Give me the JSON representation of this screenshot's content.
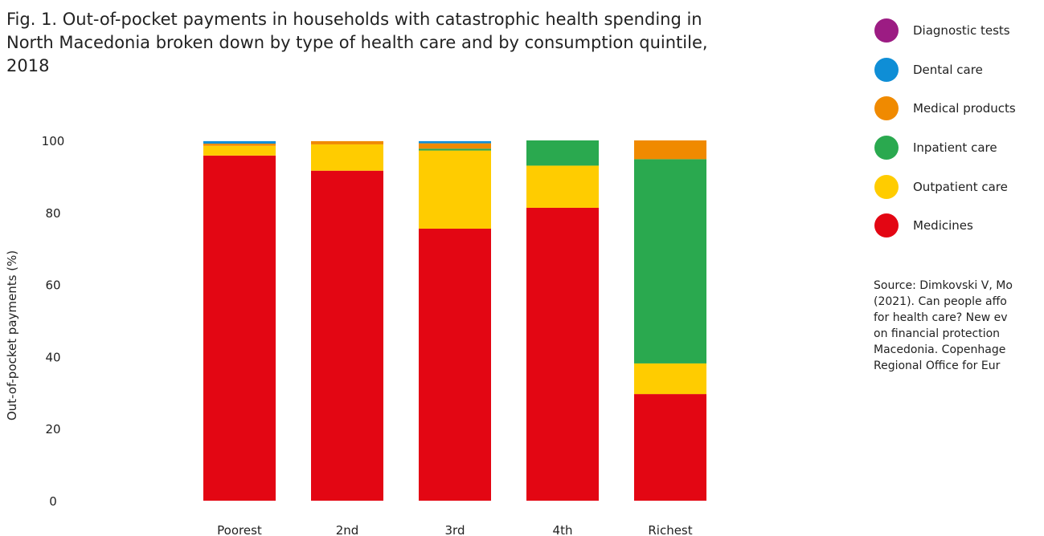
{
  "chart_data": {
    "type": "bar",
    "stacked": true,
    "title": "Fig. 1. Out-of-pocket payments in households with catastrophic health spending in North Macedonia broken down by type of health care and by consumption quintile, 2018",
    "xlabel": "",
    "ylabel": "Out-of-pocket payments (%)",
    "ylim": [
      0,
      100
    ],
    "yticks": [
      0,
      20,
      40,
      60,
      80,
      100
    ],
    "grid": false,
    "legend_position": "right",
    "categories": [
      "Poorest",
      "2nd",
      "3rd",
      "4th",
      "Richest"
    ],
    "series": [
      {
        "name": "Medicines",
        "color": "#e30613",
        "values": [
          95.8,
          91.6,
          75.5,
          81.3,
          29.6
        ]
      },
      {
        "name": "Outpatient care",
        "color": "#ffcc00",
        "values": [
          2.7,
          7.3,
          21.7,
          11.7,
          8.5
        ]
      },
      {
        "name": "Inpatient care",
        "color": "#2aa94f",
        "values": [
          0.0,
          0.0,
          0.5,
          7.0,
          56.7
        ]
      },
      {
        "name": "Medical products",
        "color": "#f08a00",
        "values": [
          0.6,
          0.9,
          1.5,
          0.0,
          5.2
        ]
      },
      {
        "name": "Dental care",
        "color": "#0f8ed6",
        "values": [
          0.7,
          0.0,
          0.6,
          0.0,
          0.0
        ]
      },
      {
        "name": "Diagnostic tests",
        "color": "#9c1c83",
        "values": [
          0.0,
          0.0,
          0.0,
          0.0,
          0.0
        ]
      }
    ],
    "legend_order": [
      "Diagnostic tests",
      "Dental care",
      "Medical products",
      "Inpatient care",
      "Outpatient care",
      "Medicines"
    ],
    "source": "Source: Dimkovski V, Mo\n(2021). Can people affo\nfor health care? New ev\non financial protection \nMacedonia. Copenhage\nRegional Office for Eur"
  }
}
